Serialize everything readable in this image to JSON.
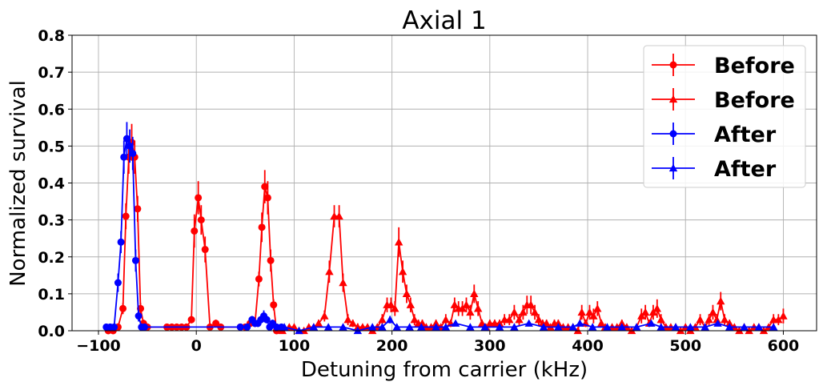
{
  "chart_data": {
    "type": "scatter",
    "title": "Axial 1",
    "xlabel": "Detuning from carrier (kHz)",
    "ylabel": "Normalized survival",
    "xlim": [
      -127,
      634
    ],
    "ylim": [
      0,
      0.8
    ],
    "xticks": [
      -100,
      0,
      100,
      200,
      300,
      400,
      500,
      600
    ],
    "xtick_labels": [
      "−100",
      "0",
      "100",
      "200",
      "300",
      "400",
      "500",
      "600"
    ],
    "yticks": [
      0,
      0.1,
      0.2,
      0.3,
      0.4,
      0.5,
      0.6,
      0.7,
      0.8
    ],
    "ytick_labels": [
      "0.0",
      "0.1",
      "0.2",
      "0.3",
      "0.4",
      "0.5",
      "0.6",
      "0.7",
      "0.8"
    ],
    "grid": true,
    "legend_position": "top-right",
    "series": [
      {
        "name": "Before",
        "color": "#ff0000",
        "marker": "circle",
        "x": [
          -90,
          -85,
          -80,
          -75,
          -72,
          -69,
          -66,
          -63,
          -60,
          -57,
          -54,
          -50,
          -30,
          -25,
          -20,
          -15,
          -10,
          -5,
          -2,
          2,
          5,
          9,
          14,
          20,
          25,
          45,
          50,
          55,
          60,
          64,
          67,
          70,
          73,
          76,
          79,
          82
        ],
        "y": [
          0.0,
          0.0,
          0.01,
          0.06,
          0.31,
          0.47,
          0.51,
          0.47,
          0.33,
          0.06,
          0.02,
          0.01,
          0.01,
          0.01,
          0.01,
          0.01,
          0.01,
          0.03,
          0.27,
          0.36,
          0.3,
          0.22,
          0.01,
          0.02,
          0.01,
          0.01,
          0.01,
          0.02,
          0.02,
          0.14,
          0.28,
          0.39,
          0.36,
          0.19,
          0.07,
          0.0
        ],
        "yerr": [
          0.005,
          0.005,
          0.01,
          0.015,
          0.035,
          0.045,
          0.05,
          0.045,
          0.035,
          0.015,
          0.01,
          0.005,
          0.005,
          0.005,
          0.005,
          0.005,
          0.005,
          0.01,
          0.045,
          0.045,
          0.04,
          0.035,
          0.005,
          0.01,
          0.005,
          0.005,
          0.005,
          0.01,
          0.01,
          0.02,
          0.04,
          0.045,
          0.045,
          0.03,
          0.015,
          0.005
        ]
      },
      {
        "name": "Before",
        "color": "#ff0000",
        "marker": "triangle",
        "x": [
          88,
          95,
          100,
          105,
          110,
          115,
          120,
          125,
          131,
          136,
          141,
          146,
          150,
          155,
          160,
          165,
          170,
          175,
          180,
          185,
          190,
          195,
          199,
          203,
          207,
          211,
          215,
          219,
          223,
          227,
          231,
          235,
          240,
          245,
          250,
          255,
          260,
          264,
          268,
          272,
          276,
          280,
          284,
          288,
          292,
          296,
          300,
          305,
          310,
          315,
          320,
          325,
          330,
          334,
          338,
          342,
          346,
          350,
          354,
          358,
          362,
          366,
          370,
          375,
          380,
          385,
          390,
          394,
          398,
          402,
          406,
          410,
          414,
          418,
          425,
          430,
          435,
          440,
          445,
          450,
          455,
          459,
          463,
          467,
          471,
          475,
          480,
          485,
          490,
          495,
          500,
          505,
          510,
          515,
          520,
          524,
          528,
          532,
          536,
          540,
          545,
          550,
          555,
          560,
          565,
          570,
          575,
          580,
          585,
          590,
          595,
          600
        ],
        "y": [
          0.0,
          0.01,
          0.01,
          0.0,
          0.0,
          0.01,
          0.01,
          0.02,
          0.04,
          0.16,
          0.31,
          0.31,
          0.13,
          0.03,
          0.02,
          0.01,
          0.01,
          0.01,
          0.0,
          0.01,
          0.03,
          0.07,
          0.07,
          0.06,
          0.24,
          0.16,
          0.1,
          0.07,
          0.03,
          0.02,
          0.02,
          0.01,
          0.01,
          0.02,
          0.01,
          0.03,
          0.02,
          0.07,
          0.06,
          0.06,
          0.07,
          0.05,
          0.1,
          0.06,
          0.02,
          0.01,
          0.02,
          0.02,
          0.02,
          0.03,
          0.03,
          0.05,
          0.03,
          0.05,
          0.07,
          0.07,
          0.05,
          0.03,
          0.02,
          0.02,
          0.01,
          0.02,
          0.02,
          0.01,
          0.01,
          0.01,
          0.0,
          0.05,
          0.02,
          0.05,
          0.04,
          0.06,
          0.02,
          0.01,
          0.01,
          0.01,
          0.02,
          0.01,
          0.0,
          0.01,
          0.04,
          0.05,
          0.02,
          0.05,
          0.06,
          0.03,
          0.01,
          0.01,
          0.01,
          0.0,
          0.01,
          0.0,
          0.01,
          0.03,
          0.01,
          0.03,
          0.05,
          0.03,
          0.08,
          0.03,
          0.02,
          0.01,
          0.0,
          0.01,
          0.0,
          0.01,
          0.01,
          0.0,
          0.01,
          0.03,
          0.03,
          0.04
        ],
        "yerr": [
          0.005,
          0.005,
          0.005,
          0.005,
          0.005,
          0.005,
          0.005,
          0.01,
          0.015,
          0.03,
          0.03,
          0.03,
          0.025,
          0.015,
          0.01,
          0.01,
          0.005,
          0.005,
          0.005,
          0.005,
          0.015,
          0.02,
          0.02,
          0.02,
          0.04,
          0.03,
          0.025,
          0.02,
          0.015,
          0.01,
          0.01,
          0.005,
          0.005,
          0.01,
          0.005,
          0.015,
          0.01,
          0.02,
          0.02,
          0.02,
          0.02,
          0.02,
          0.025,
          0.02,
          0.01,
          0.005,
          0.01,
          0.01,
          0.01,
          0.015,
          0.015,
          0.02,
          0.015,
          0.02,
          0.025,
          0.025,
          0.02,
          0.015,
          0.01,
          0.01,
          0.005,
          0.01,
          0.01,
          0.005,
          0.005,
          0.005,
          0.005,
          0.02,
          0.01,
          0.02,
          0.02,
          0.02,
          0.01,
          0.005,
          0.005,
          0.005,
          0.01,
          0.005,
          0.005,
          0.005,
          0.02,
          0.02,
          0.01,
          0.02,
          0.025,
          0.015,
          0.005,
          0.005,
          0.005,
          0.005,
          0.005,
          0.005,
          0.005,
          0.015,
          0.005,
          0.015,
          0.02,
          0.015,
          0.025,
          0.015,
          0.01,
          0.005,
          0.005,
          0.005,
          0.005,
          0.005,
          0.005,
          0.005,
          0.005,
          0.015,
          0.015,
          0.02
        ]
      },
      {
        "name": "After",
        "color": "#0000ff",
        "marker": "circle",
        "x": [
          -92,
          -88,
          -84,
          -80,
          -77,
          -74,
          -71,
          -68,
          -65,
          -62,
          -59,
          -56,
          -53,
          45,
          52,
          57,
          60,
          63,
          66,
          69,
          72,
          75,
          78,
          82,
          87
        ],
        "y": [
          0.01,
          0.01,
          0.01,
          0.13,
          0.24,
          0.47,
          0.52,
          0.5,
          0.48,
          0.19,
          0.04,
          0.01,
          0.01,
          0.01,
          0.01,
          0.03,
          0.02,
          0.02,
          0.03,
          0.04,
          0.03,
          0.01,
          0.02,
          0.01,
          0.01
        ],
        "yerr": [
          0.005,
          0.005,
          0.005,
          0.025,
          0.03,
          0.045,
          0.045,
          0.045,
          0.045,
          0.03,
          0.015,
          0.005,
          0.005,
          0.005,
          0.005,
          0.01,
          0.01,
          0.01,
          0.01,
          0.015,
          0.01,
          0.005,
          0.01,
          0.005,
          0.005
        ]
      },
      {
        "name": "After",
        "color": "#0000ff",
        "marker": "triangle",
        "x": [
          90,
          105,
          120,
          135,
          150,
          165,
          180,
          190,
          198,
          205,
          218,
          230,
          245,
          255,
          265,
          280,
          295,
          310,
          325,
          340,
          355,
          370,
          385,
          392,
          405,
          420,
          435,
          450,
          465,
          475,
          490,
          505,
          520,
          533,
          545,
          560,
          575,
          590
        ],
        "y": [
          0.01,
          0.0,
          0.01,
          0.01,
          0.01,
          0.0,
          0.01,
          0.01,
          0.03,
          0.01,
          0.01,
          0.01,
          0.01,
          0.01,
          0.02,
          0.01,
          0.01,
          0.01,
          0.01,
          0.02,
          0.01,
          0.01,
          0.01,
          0.02,
          0.01,
          0.01,
          0.01,
          0.01,
          0.02,
          0.01,
          0.01,
          0.01,
          0.01,
          0.02,
          0.01,
          0.01,
          0.01,
          0.01
        ],
        "yerr": [
          0.005,
          0.005,
          0.005,
          0.005,
          0.005,
          0.005,
          0.005,
          0.005,
          0.01,
          0.005,
          0.005,
          0.005,
          0.005,
          0.005,
          0.005,
          0.005,
          0.005,
          0.005,
          0.005,
          0.005,
          0.005,
          0.005,
          0.005,
          0.005,
          0.005,
          0.005,
          0.005,
          0.005,
          0.005,
          0.005,
          0.005,
          0.005,
          0.005,
          0.005,
          0.005,
          0.005,
          0.005,
          0.005
        ]
      }
    ]
  }
}
